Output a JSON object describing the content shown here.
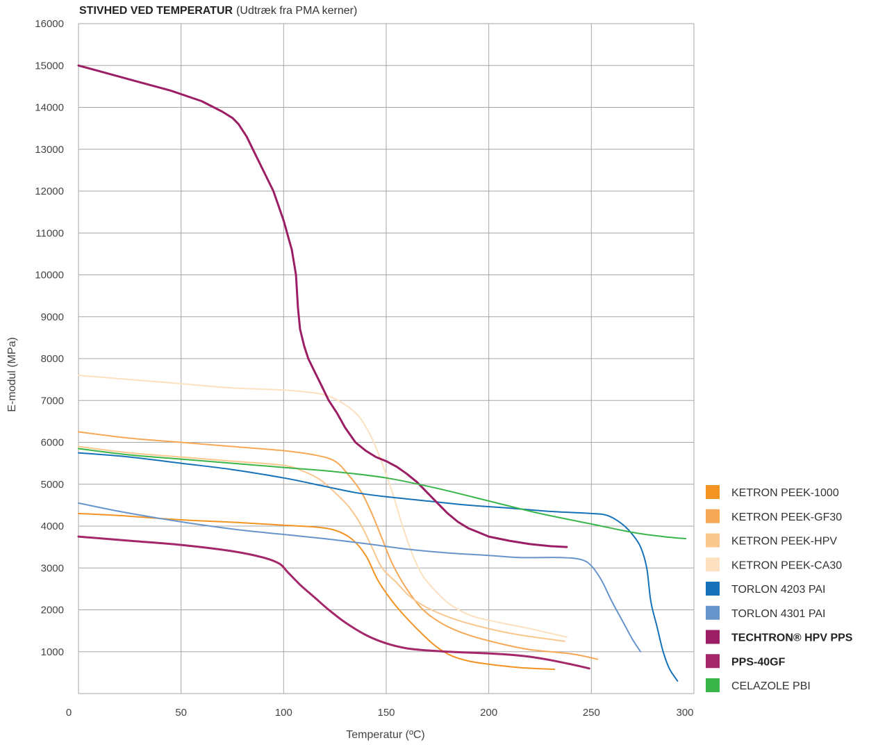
{
  "chart_data": {
    "type": "line",
    "title": "STIVHED VED TEMPERATUR",
    "subtitle": "(Udtræk fra PMA kerner)",
    "xlabel": "Temperatur (ºC)",
    "ylabel": "E-modul (MPa)",
    "xlim": [
      0,
      300
    ],
    "ylim": [
      0,
      16000
    ],
    "x_ticks": [
      0,
      50,
      100,
      150,
      200,
      250,
      300
    ],
    "y_ticks": [
      1000,
      2000,
      3000,
      4000,
      5000,
      6000,
      7000,
      8000,
      9000,
      10000,
      11000,
      12000,
      13000,
      14000,
      15000,
      16000
    ],
    "grid": true,
    "legend_position": "bottom-right",
    "series": [
      {
        "name": "KETRON PEEK-1000",
        "color": "#f39321",
        "bold": false,
        "curve": true,
        "points": [
          [
            0,
            4300
          ],
          [
            20,
            4250
          ],
          [
            50,
            4150
          ],
          [
            80,
            4080
          ],
          [
            100,
            4020
          ],
          [
            115,
            3980
          ],
          [
            125,
            3900
          ],
          [
            133,
            3700
          ],
          [
            140,
            3300
          ],
          [
            146,
            2700
          ],
          [
            153,
            2200
          ],
          [
            160,
            1800
          ],
          [
            168,
            1400
          ],
          [
            175,
            1100
          ],
          [
            182,
            900
          ],
          [
            190,
            780
          ],
          [
            200,
            700
          ],
          [
            215,
            620
          ],
          [
            232,
            580
          ]
        ]
      },
      {
        "name": "KETRON PEEK-GF30",
        "color": "#f6a856",
        "bold": false,
        "curve": true,
        "points": [
          [
            0,
            6250
          ],
          [
            25,
            6100
          ],
          [
            50,
            6000
          ],
          [
            75,
            5900
          ],
          [
            100,
            5800
          ],
          [
            115,
            5700
          ],
          [
            125,
            5550
          ],
          [
            132,
            5200
          ],
          [
            138,
            4800
          ],
          [
            143,
            4300
          ],
          [
            148,
            3700
          ],
          [
            153,
            3100
          ],
          [
            160,
            2500
          ],
          [
            168,
            2000
          ],
          [
            178,
            1650
          ],
          [
            190,
            1400
          ],
          [
            205,
            1200
          ],
          [
            220,
            1050
          ],
          [
            240,
            950
          ],
          [
            253,
            820
          ]
        ]
      },
      {
        "name": "KETRON PEEK-HPV",
        "color": "#f9c78e",
        "bold": false,
        "curve": true,
        "points": [
          [
            0,
            5900
          ],
          [
            25,
            5750
          ],
          [
            50,
            5650
          ],
          [
            75,
            5550
          ],
          [
            100,
            5450
          ],
          [
            110,
            5300
          ],
          [
            118,
            5100
          ],
          [
            125,
            4800
          ],
          [
            132,
            4450
          ],
          [
            138,
            4000
          ],
          [
            143,
            3500
          ],
          [
            148,
            3000
          ],
          [
            155,
            2650
          ],
          [
            162,
            2300
          ],
          [
            172,
            2000
          ],
          [
            185,
            1750
          ],
          [
            200,
            1550
          ],
          [
            215,
            1400
          ],
          [
            237,
            1250
          ]
        ]
      },
      {
        "name": "KETRON PEEK-CA30",
        "color": "#fde0bf",
        "bold": false,
        "curve": true,
        "points": [
          [
            0,
            7600
          ],
          [
            25,
            7500
          ],
          [
            50,
            7400
          ],
          [
            75,
            7300
          ],
          [
            100,
            7250
          ],
          [
            115,
            7180
          ],
          [
            122,
            7100
          ],
          [
            130,
            6900
          ],
          [
            137,
            6600
          ],
          [
            143,
            6100
          ],
          [
            148,
            5500
          ],
          [
            153,
            4800
          ],
          [
            158,
            4000
          ],
          [
            163,
            3300
          ],
          [
            168,
            2800
          ],
          [
            175,
            2400
          ],
          [
            182,
            2100
          ],
          [
            192,
            1850
          ],
          [
            205,
            1700
          ],
          [
            220,
            1550
          ],
          [
            238,
            1350
          ]
        ]
      },
      {
        "name": "TORLON 4203 PAI",
        "color": "#1571b8",
        "bold": false,
        "curve": true,
        "points": [
          [
            0,
            5750
          ],
          [
            25,
            5650
          ],
          [
            50,
            5500
          ],
          [
            75,
            5350
          ],
          [
            100,
            5150
          ],
          [
            120,
            4950
          ],
          [
            135,
            4800
          ],
          [
            150,
            4700
          ],
          [
            170,
            4600
          ],
          [
            190,
            4500
          ],
          [
            210,
            4430
          ],
          [
            230,
            4350
          ],
          [
            250,
            4300
          ],
          [
            258,
            4250
          ],
          [
            265,
            4050
          ],
          [
            270,
            3800
          ],
          [
            274,
            3500
          ],
          [
            277,
            3000
          ],
          [
            279,
            2200
          ],
          [
            282,
            1600
          ],
          [
            285,
            1000
          ],
          [
            288,
            600
          ],
          [
            292,
            300
          ]
        ]
      },
      {
        "name": "TORLON 4301 PAI",
        "color": "#6694cb",
        "bold": false,
        "curve": true,
        "points": [
          [
            0,
            4550
          ],
          [
            20,
            4350
          ],
          [
            40,
            4180
          ],
          [
            60,
            4030
          ],
          [
            80,
            3900
          ],
          [
            100,
            3800
          ],
          [
            120,
            3700
          ],
          [
            140,
            3580
          ],
          [
            160,
            3450
          ],
          [
            180,
            3360
          ],
          [
            200,
            3300
          ],
          [
            215,
            3250
          ],
          [
            235,
            3250
          ],
          [
            245,
            3200
          ],
          [
            250,
            3050
          ],
          [
            255,
            2700
          ],
          [
            260,
            2200
          ],
          [
            265,
            1750
          ],
          [
            270,
            1300
          ],
          [
            274,
            1000
          ]
        ]
      },
      {
        "name": "TECHTRON® HPV PPS",
        "color": "#9b1d63",
        "bold": true,
        "curve": false,
        "points": [
          [
            0,
            15000
          ],
          [
            15,
            14800
          ],
          [
            30,
            14600
          ],
          [
            45,
            14400
          ],
          [
            60,
            14150
          ],
          [
            70,
            13900
          ],
          [
            75,
            13750
          ],
          [
            78,
            13600
          ],
          [
            82,
            13300
          ],
          [
            85,
            13000
          ],
          [
            90,
            12500
          ],
          [
            95,
            12000
          ],
          [
            100,
            11300
          ],
          [
            104,
            10600
          ],
          [
            106,
            10000
          ],
          [
            107,
            9200
          ],
          [
            108,
            8700
          ],
          [
            110,
            8300
          ],
          [
            112,
            8000
          ],
          [
            115,
            7700
          ],
          [
            118,
            7400
          ],
          [
            122,
            7000
          ],
          [
            126,
            6700
          ],
          [
            130,
            6350
          ],
          [
            135,
            6000
          ],
          [
            140,
            5800
          ],
          [
            145,
            5650
          ],
          [
            150,
            5550
          ],
          [
            155,
            5420
          ],
          [
            160,
            5250
          ],
          [
            165,
            5050
          ],
          [
            170,
            4800
          ],
          [
            175,
            4550
          ],
          [
            180,
            4300
          ],
          [
            185,
            4100
          ],
          [
            190,
            3950
          ],
          [
            195,
            3850
          ],
          [
            200,
            3750
          ],
          [
            210,
            3650
          ],
          [
            220,
            3570
          ],
          [
            230,
            3520
          ],
          [
            238,
            3500
          ]
        ]
      },
      {
        "name": "PPS-40GF",
        "color": "#a4276a",
        "bold": true,
        "curve": true,
        "points": [
          [
            0,
            3750
          ],
          [
            25,
            3650
          ],
          [
            50,
            3550
          ],
          [
            75,
            3400
          ],
          [
            90,
            3250
          ],
          [
            98,
            3100
          ],
          [
            102,
            2900
          ],
          [
            108,
            2600
          ],
          [
            115,
            2300
          ],
          [
            122,
            2000
          ],
          [
            130,
            1700
          ],
          [
            140,
            1400
          ],
          [
            150,
            1200
          ],
          [
            160,
            1080
          ],
          [
            170,
            1030
          ],
          [
            180,
            1000
          ],
          [
            190,
            980
          ],
          [
            200,
            960
          ],
          [
            210,
            930
          ],
          [
            220,
            880
          ],
          [
            230,
            800
          ],
          [
            240,
            700
          ],
          [
            249,
            600
          ]
        ]
      },
      {
        "name": "CELAZOLE PBI",
        "color": "#3ab54a",
        "bold": false,
        "curve": true,
        "points": [
          [
            0,
            5850
          ],
          [
            25,
            5700
          ],
          [
            50,
            5600
          ],
          [
            75,
            5500
          ],
          [
            100,
            5400
          ],
          [
            125,
            5300
          ],
          [
            150,
            5150
          ],
          [
            175,
            4900
          ],
          [
            200,
            4600
          ],
          [
            225,
            4300
          ],
          [
            250,
            4050
          ],
          [
            270,
            3850
          ],
          [
            285,
            3750
          ],
          [
            296,
            3700
          ]
        ]
      }
    ]
  }
}
